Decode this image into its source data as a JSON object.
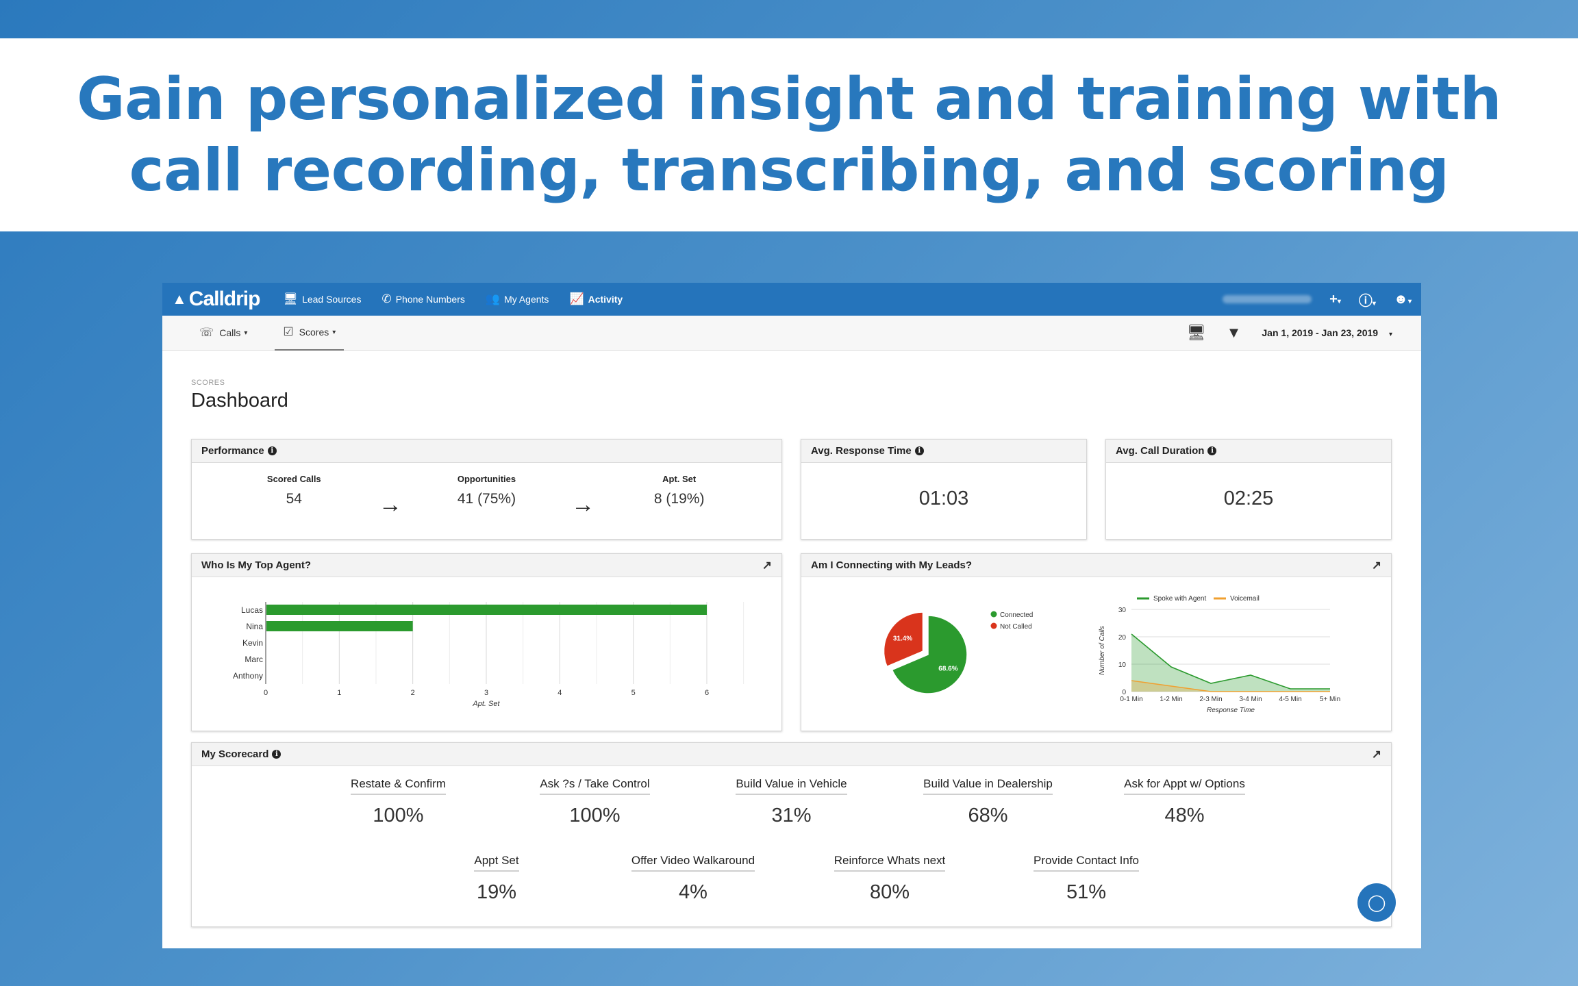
{
  "hero": {
    "title": "Gain personalized insight and training with call recording, transcribing, and scoring"
  },
  "nav": {
    "logo": "Calldrip",
    "items": [
      {
        "label": "Lead Sources",
        "icon": "monitor-icon"
      },
      {
        "label": "Phone Numbers",
        "icon": "phone-icon"
      },
      {
        "label": "My Agents",
        "icon": "users-icon"
      },
      {
        "label": "Activity",
        "icon": "chart-line-icon"
      }
    ]
  },
  "subnav": {
    "calls": "Calls",
    "scores": "Scores",
    "date_range": "Jan 1, 2019 - Jan 23, 2019"
  },
  "page": {
    "crumb": "SCORES",
    "title": "Dashboard"
  },
  "performance": {
    "title": "Performance",
    "scored_label": "Scored Calls",
    "scored_value": "54",
    "opp_label": "Opportunities",
    "opp_value": "41 (75%)",
    "apt_label": "Apt. Set",
    "apt_value": "8 (19%)"
  },
  "response": {
    "title": "Avg. Response Time",
    "value": "01:03"
  },
  "duration": {
    "title": "Avg. Call Duration",
    "value": "02:25"
  },
  "top_agent": {
    "title": "Who Is My Top Agent?"
  },
  "connecting": {
    "title": "Am I Connecting with My Leads?"
  },
  "scorecard": {
    "title": "My Scorecard",
    "row1": [
      {
        "label": "Restate & Confirm",
        "value": "100%"
      },
      {
        "label": "Ask ?s / Take Control",
        "value": "100%"
      },
      {
        "label": "Build Value in Vehicle",
        "value": "31%"
      },
      {
        "label": "Build Value in Dealership",
        "value": "68%"
      },
      {
        "label": "Ask for Appt w/ Options",
        "value": "48%"
      }
    ],
    "row2": [
      {
        "label": "Appt Set",
        "value": "19%"
      },
      {
        "label": "Offer Video Walkaround",
        "value": "4%"
      },
      {
        "label": "Reinforce Whats next",
        "value": "80%"
      },
      {
        "label": "Provide Contact Info",
        "value": "51%"
      }
    ]
  },
  "chart_data": [
    {
      "type": "bar",
      "orientation": "horizontal",
      "categories": [
        "Lucas",
        "Nina",
        "Kevin",
        "Marc",
        "Anthony"
      ],
      "values": [
        6,
        2,
        0,
        0,
        0
      ],
      "xlabel": "Apt. Set",
      "xlim": [
        0,
        6
      ],
      "xticks": [
        0,
        1,
        2,
        3,
        4,
        5,
        6
      ],
      "color": "#2b9a2e"
    },
    {
      "type": "pie",
      "labels": [
        "Connected",
        "Not Called"
      ],
      "values": [
        68.6,
        31.4
      ],
      "value_labels": [
        "68.6%",
        "31.4%"
      ],
      "colors": [
        "#2b9a2e",
        "#d9341c"
      ],
      "legend": "right"
    },
    {
      "type": "area",
      "categories": [
        "0-1 Min",
        "1-2 Min",
        "2-3 Min",
        "3-4 Min",
        "4-5 Min",
        "5+ Min"
      ],
      "series": [
        {
          "name": "Spoke with Agent",
          "values": [
            21,
            9,
            3,
            6,
            1,
            1
          ],
          "color": "#2b9a2e"
        },
        {
          "name": "Voicemail",
          "values": [
            4,
            2,
            0,
            0,
            0,
            0
          ],
          "color": "#f0a030"
        }
      ],
      "xlabel": "Response Time",
      "ylabel": "Number of Calls",
      "ylim": [
        0,
        30
      ],
      "yticks": [
        0,
        10,
        20,
        30
      ],
      "legend": "top"
    }
  ]
}
